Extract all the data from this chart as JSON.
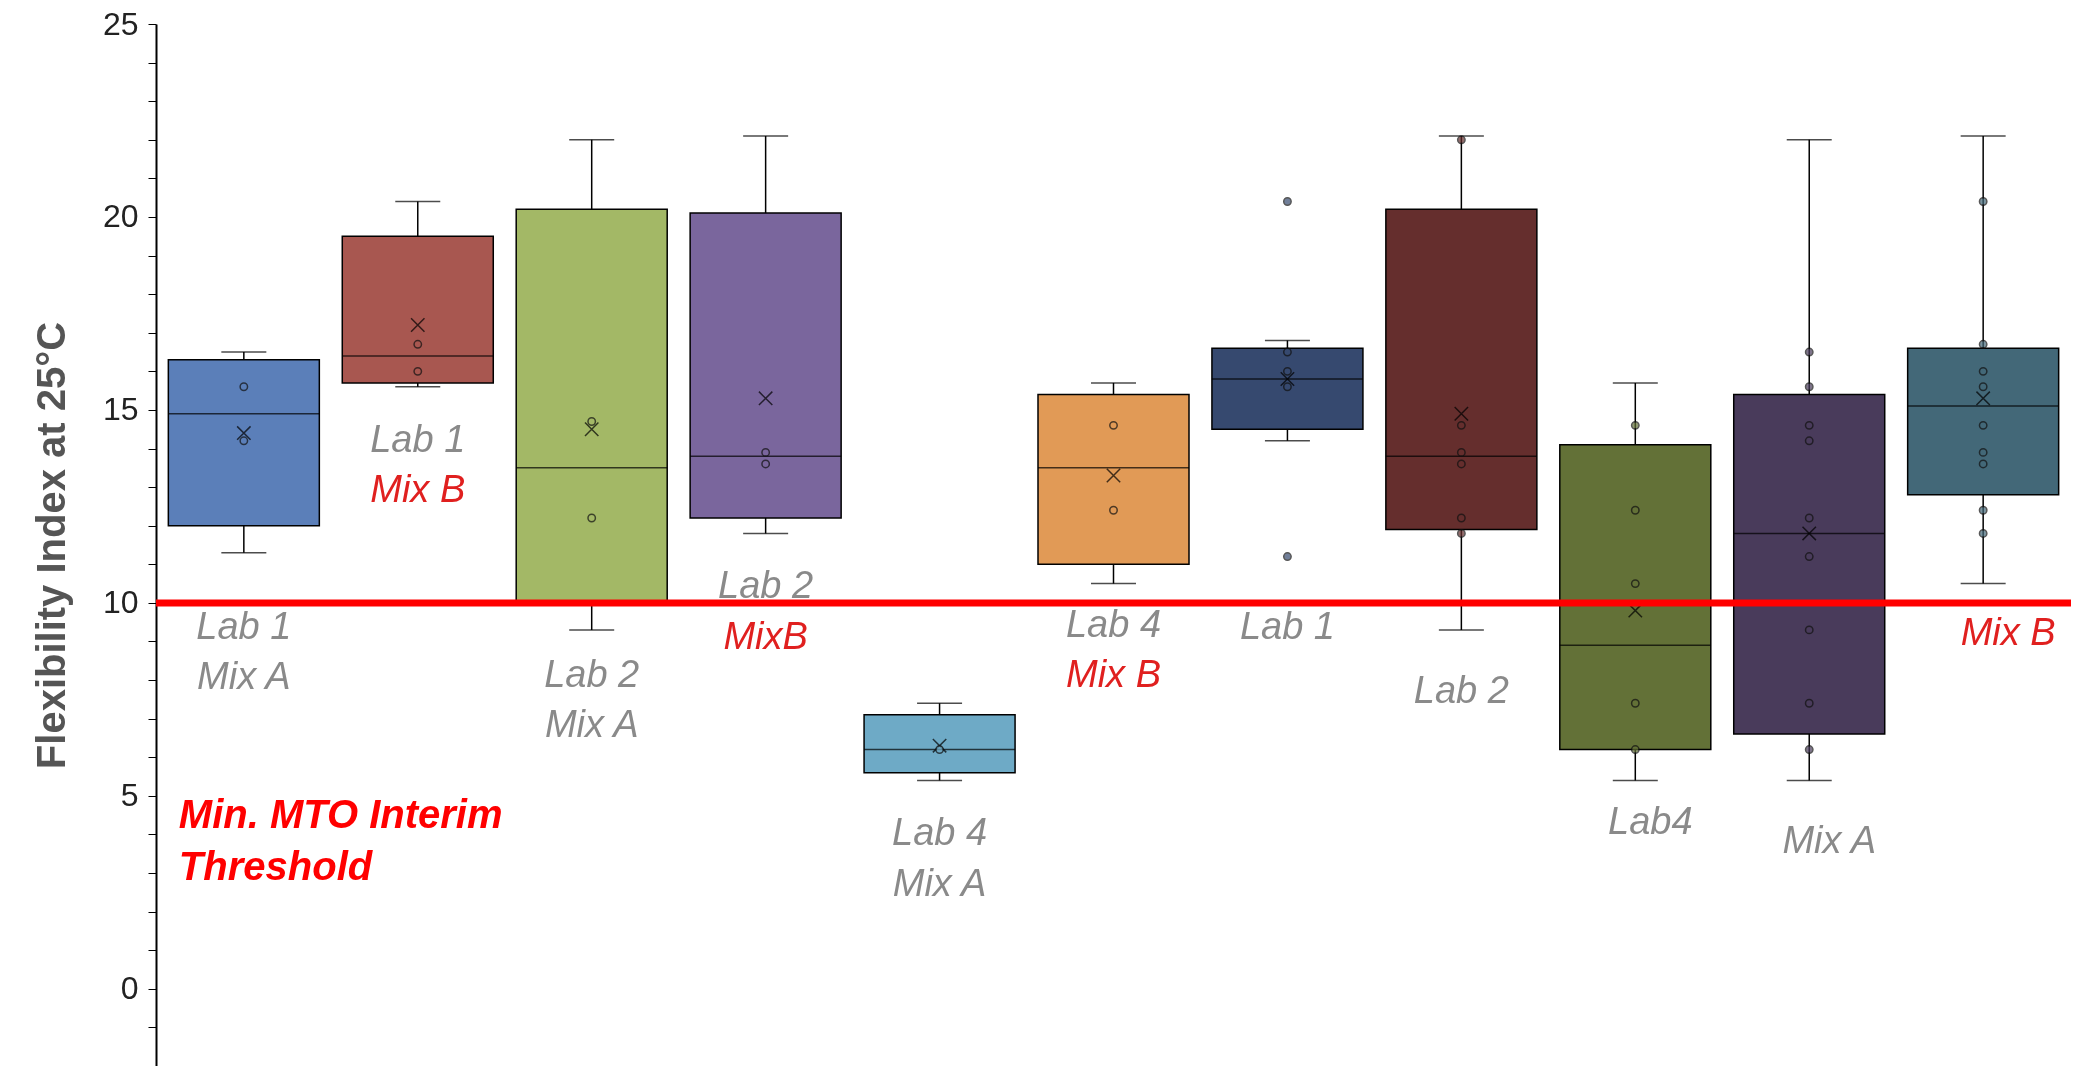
{
  "chart_data": {
    "type": "box",
    "ylabel": "Flexibility Index at 25°C",
    "categories": [
      null,
      null,
      null,
      null,
      null,
      null,
      null,
      null,
      null,
      null,
      null
    ],
    "colors": [
      "#5b7fb9",
      "#a85750",
      "#a3b866",
      "#7a669d",
      "#6eaac6",
      "#e19a56",
      "#36496f",
      "#652e2d",
      "#637137",
      "#493b5b",
      "#436878"
    ],
    "boxes": [
      {
        "low": 11.3,
        "q1": 12.0,
        "median": 14.9,
        "q3": 16.3,
        "high": 16.5,
        "mean": 14.4,
        "outliers": [
          15.6,
          14.2
        ]
      },
      {
        "low": 15.6,
        "q1": 15.7,
        "median": 16.4,
        "q3": 19.5,
        "high": 20.4,
        "mean": 17.2,
        "outliers": [
          16.7,
          16.0
        ]
      },
      {
        "low": 9.3,
        "q1": 10.0,
        "median": 13.5,
        "q3": 20.2,
        "high": 22.0,
        "mean": 14.5,
        "outliers": [
          14.7,
          12.2
        ]
      },
      {
        "low": 11.8,
        "q1": 12.2,
        "median": 13.8,
        "q3": 20.1,
        "high": 22.1,
        "mean": 15.3,
        "outliers": [
          13.9,
          13.6
        ]
      },
      {
        "low": 5.4,
        "q1": 5.6,
        "median": 6.2,
        "q3": 7.1,
        "high": 7.4,
        "mean": 6.3,
        "outliers": [
          6.2
        ]
      },
      {
        "low": 10.5,
        "q1": 11.0,
        "median": 13.5,
        "q3": 15.4,
        "high": 15.7,
        "mean": 13.3,
        "outliers": [
          14.6,
          12.4
        ]
      },
      {
        "low": 14.2,
        "q1": 14.5,
        "median": 15.8,
        "q3": 16.6,
        "high": 16.8,
        "mean": 15.8,
        "outliers": [
          20.4,
          16.5,
          16.0,
          15.6,
          11.2
        ]
      },
      {
        "low": 9.3,
        "q1": 11.9,
        "median": 13.8,
        "q3": 20.2,
        "high": 22.1,
        "mean": 14.9,
        "outliers": [
          22.0,
          14.6,
          13.9,
          13.6,
          12.2,
          11.8
        ]
      },
      {
        "low": 5.4,
        "q1": 6.2,
        "median": 8.9,
        "q3": 14.1,
        "high": 15.7,
        "mean": 9.8,
        "outliers": [
          14.6,
          12.4,
          10.5,
          7.4,
          6.2
        ]
      },
      {
        "low": 5.4,
        "q1": 6.6,
        "median": 11.8,
        "q3": 15.4,
        "high": 22.0,
        "mean": 11.8,
        "outliers": [
          16.5,
          15.6,
          14.6,
          14.2,
          12.2,
          11.2,
          9.3,
          7.4,
          6.2
        ]
      },
      {
        "low": 10.5,
        "q1": 12.8,
        "median": 15.1,
        "q3": 16.6,
        "high": 22.1,
        "mean": 15.3,
        "outliers": [
          20.4,
          16.7,
          16.0,
          15.6,
          14.6,
          13.9,
          13.6,
          12.4,
          11.8
        ]
      }
    ],
    "ylim": [
      -2,
      25
    ],
    "yticks": [
      {
        "value": -2,
        "label": null
      },
      {
        "value": -1,
        "label": null
      },
      0,
      {
        "value": 1,
        "label": null
      },
      {
        "value": 2,
        "label": null
      },
      {
        "value": 3,
        "label": null
      },
      {
        "value": 4,
        "label": null
      },
      5,
      {
        "value": 6,
        "label": null
      },
      {
        "value": 7,
        "label": null
      },
      {
        "value": 8,
        "label": null
      },
      {
        "value": 9,
        "label": null
      },
      10,
      {
        "value": 11,
        "label": null
      },
      {
        "value": 12,
        "label": null
      },
      {
        "value": 13,
        "label": null
      },
      {
        "value": 14,
        "label": null
      },
      15,
      {
        "value": 16,
        "label": null
      },
      {
        "value": 17,
        "label": null
      },
      {
        "value": 18,
        "label": null
      },
      {
        "value": 19,
        "label": null
      },
      20,
      {
        "value": 21,
        "label": null
      },
      {
        "value": 22,
        "label": null
      },
      {
        "value": 23,
        "label": null
      },
      {
        "value": 24,
        "label": null
      },
      25
    ],
    "ref_lines": [
      {
        "axis": "y",
        "value": 10,
        "label": "Min. MTO Interim Threshold",
        "color": "#ff0000"
      }
    ],
    "annotations": [
      "Lab 1",
      "Mix A",
      "Lab 1",
      "Mix B",
      "Lab 2",
      "Mix A",
      "Lab 2",
      "MixB",
      "Lab 4",
      "Mix A",
      "Lab 4",
      "Mix B",
      "Lab 1",
      "Lab 2",
      "Lab4",
      "Mix A",
      "Mix B"
    ]
  }
}
